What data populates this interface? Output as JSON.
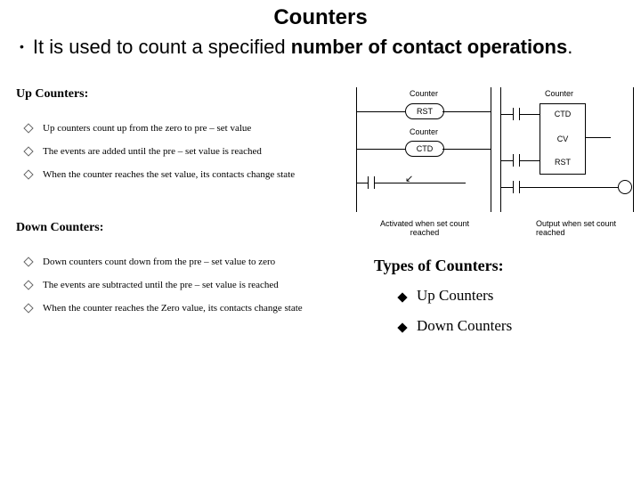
{
  "title": "Counters",
  "main_bullet": {
    "prefix": "It is used to count a specified ",
    "bold": "number of contact operations",
    "suffix": "."
  },
  "up": {
    "heading": "Up Counters:",
    "items": [
      "Up counters count up from the zero to pre – set value",
      "The events are added until the pre – set value is reached",
      "When the counter reaches the set value, its contacts change state"
    ]
  },
  "down": {
    "heading": "Down Counters:",
    "items": [
      "Down counters count down from the  pre – set value to zero",
      "The events are subtracted until the pre – set value is reached",
      "When the counter reaches the Zero value, its contacts change state"
    ]
  },
  "ladder1": {
    "counter_lbl": "Counter",
    "rst": "RST",
    "ctd": "CTD",
    "caption": "Activated when set count reached"
  },
  "ladder2": {
    "counter_lbl": "Counter",
    "ctd": "CTD",
    "cv": "CV",
    "rst": "RST",
    "caption": "Output when set count reached"
  },
  "types": {
    "heading": "Types of Counters:",
    "items": [
      "Up Counters",
      "Down Counters"
    ]
  }
}
